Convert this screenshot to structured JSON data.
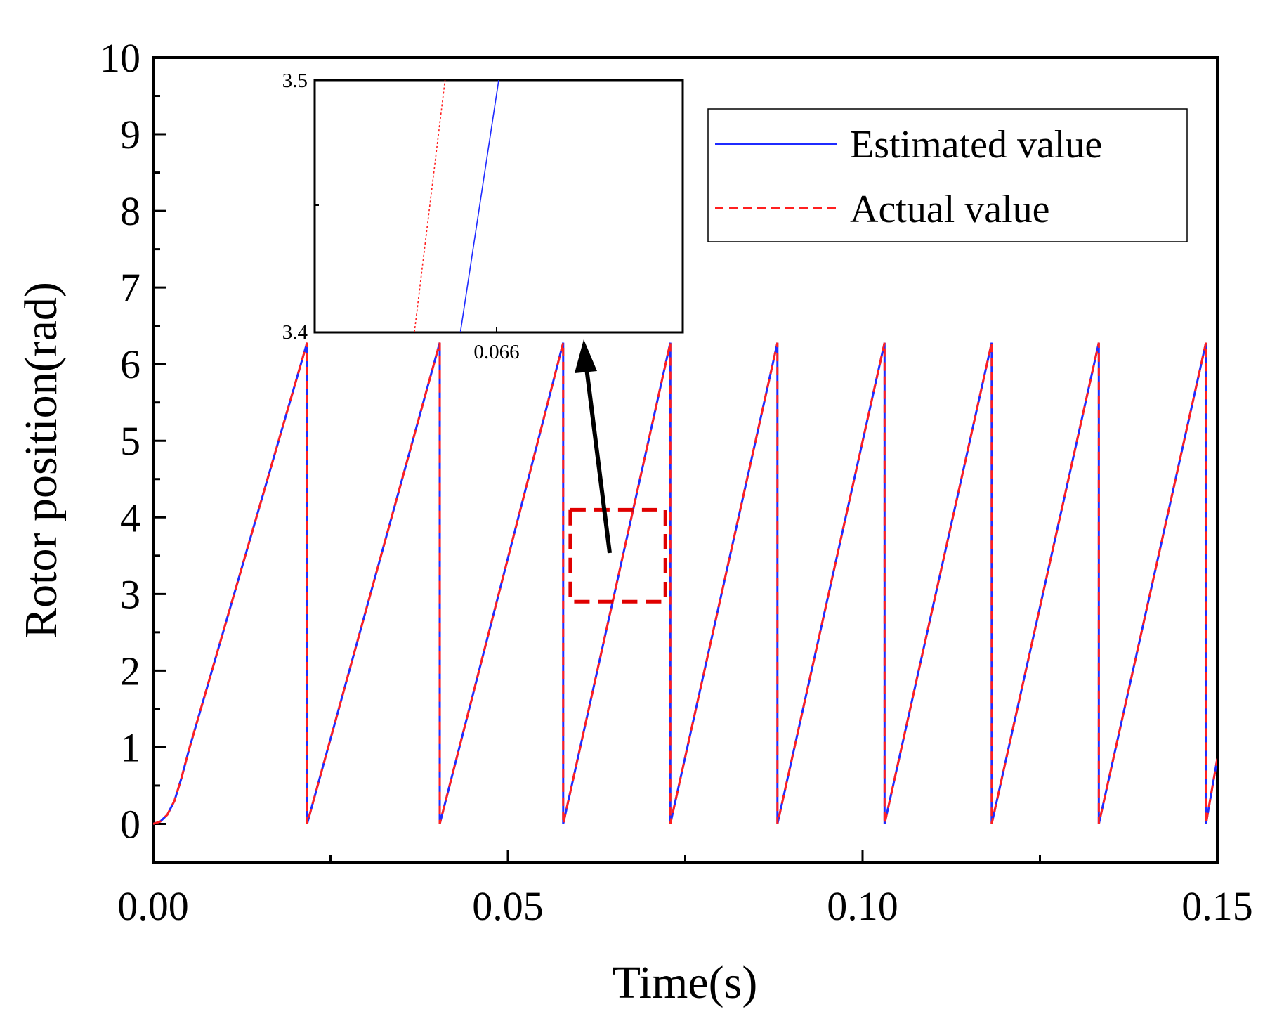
{
  "chart_data": {
    "type": "line",
    "title": "",
    "xlabel": "Time(s)",
    "ylabel": "Rotor position(rad)",
    "xlim": [
      0,
      0.15
    ],
    "ylim": [
      -0.5,
      10
    ],
    "xticks": [
      0.0,
      0.05,
      0.1,
      0.15
    ],
    "xtick_labels": [
      "0.00",
      "0.05",
      "0.10",
      "0.15"
    ],
    "yticks": [
      0,
      1,
      2,
      3,
      4,
      5,
      6,
      7,
      8,
      9,
      10
    ],
    "ytick_labels": [
      "0",
      "1",
      "2",
      "3",
      "4",
      "5",
      "6",
      "7",
      "8",
      "9",
      "10"
    ],
    "wrap_max": 6.28,
    "reset_times": [
      0.0217,
      0.0404,
      0.0578,
      0.0729,
      0.088,
      0.1031,
      0.1182,
      0.1333,
      0.1484
    ],
    "series": [
      {
        "name": "Estimated value",
        "color": "#1f2bff",
        "style": "solid",
        "x": [
          0.0,
          0.001,
          0.002,
          0.003,
          0.004,
          0.005,
          0.0217,
          0.0217,
          0.0404,
          0.0404,
          0.0578,
          0.0578,
          0.0729,
          0.0729,
          0.088,
          0.088,
          0.1031,
          0.1031,
          0.1182,
          0.1182,
          0.1333,
          0.1333,
          0.1484,
          0.1484,
          0.15
        ],
        "y": [
          0.0,
          0.03,
          0.12,
          0.3,
          0.6,
          0.95,
          6.28,
          0.0,
          6.28,
          0.0,
          6.28,
          0.0,
          6.28,
          0.0,
          6.28,
          0.0,
          6.28,
          0.0,
          6.28,
          0.0,
          6.28,
          0.0,
          6.28,
          0.0,
          0.85
        ]
      },
      {
        "name": "Actual value",
        "color": "#ff2020",
        "style": "dashed",
        "x": [
          0.0,
          0.001,
          0.002,
          0.003,
          0.004,
          0.005,
          0.0217,
          0.0217,
          0.0404,
          0.0404,
          0.0578,
          0.0578,
          0.0729,
          0.0729,
          0.088,
          0.088,
          0.1031,
          0.1031,
          0.1182,
          0.1182,
          0.1333,
          0.1333,
          0.1484,
          0.1484,
          0.15
        ],
        "y": [
          0.0,
          0.03,
          0.12,
          0.3,
          0.6,
          0.95,
          6.28,
          0.0,
          6.28,
          0.0,
          6.28,
          0.0,
          6.28,
          0.0,
          6.28,
          0.0,
          6.28,
          0.0,
          6.28,
          0.0,
          6.28,
          0.0,
          6.28,
          0.0,
          0.85
        ]
      }
    ],
    "legend": {
      "position": "top-right",
      "entries": [
        "Estimated value",
        "Actual value"
      ]
    },
    "zoom_region": {
      "xlim": [
        0.0588,
        0.0722
      ],
      "ylim": [
        2.9,
        4.1
      ],
      "color": "#e00000"
    },
    "inset": {
      "position": "top-left",
      "xlim": [
        0.0648,
        0.0672
      ],
      "ylim": [
        3.4,
        3.5
      ],
      "xtick_labels": [
        "0.066"
      ],
      "ytick_labels": [
        "3.4",
        "3.5"
      ],
      "lines": [
        {
          "name": "Estimated value",
          "color": "#1f2bff",
          "style": "solid",
          "x": [
            0.06575,
            0.066
          ],
          "y": [
            3.4,
            3.5
          ]
        },
        {
          "name": "Actual value",
          "color": "#ff2020",
          "style": "dotted",
          "x": [
            0.06545,
            0.06565
          ],
          "y": [
            3.4,
            3.5
          ]
        }
      ]
    }
  }
}
